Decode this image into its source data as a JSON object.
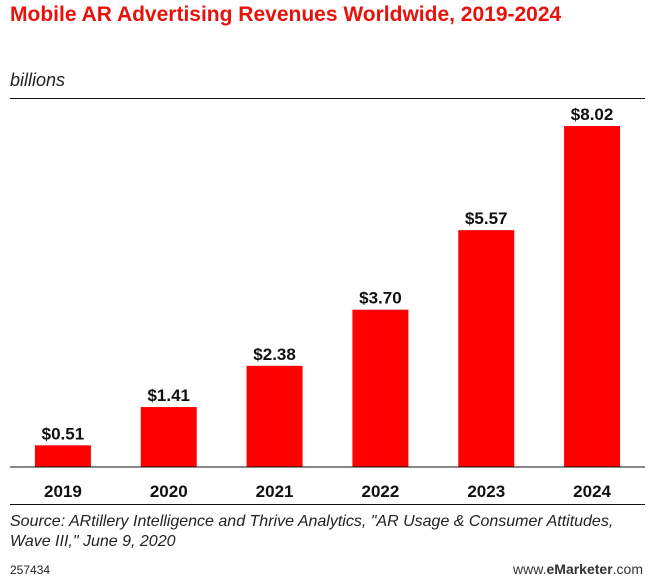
{
  "header": {
    "title": "Mobile AR Advertising Revenues Worldwide, 2019-2024",
    "subtitle": "billions"
  },
  "chart_data": {
    "type": "bar",
    "title": "Mobile AR Advertising Revenues Worldwide, 2019-2024",
    "subtitle": "billions",
    "categories": [
      "2019",
      "2020",
      "2021",
      "2022",
      "2023",
      "2024"
    ],
    "values": [
      0.51,
      1.41,
      2.38,
      3.7,
      5.57,
      8.02
    ],
    "data_labels": [
      "$0.51",
      "$1.41",
      "$2.38",
      "$3.70",
      "$5.57",
      "$8.02"
    ],
    "xlabel": "",
    "ylabel": "",
    "ylim": [
      0,
      8.02
    ],
    "bar_color": "#ff0000",
    "grid": false
  },
  "footer": {
    "source": "Source: ARtillery Intelligence and Thrive Analytics, \"AR Usage & Consumer Attitudes, Wave III,\" June 9, 2020",
    "chart_id": "257434",
    "brand_prefix": "www.",
    "brand_name": "eMarketer",
    "brand_suffix": ".com"
  }
}
